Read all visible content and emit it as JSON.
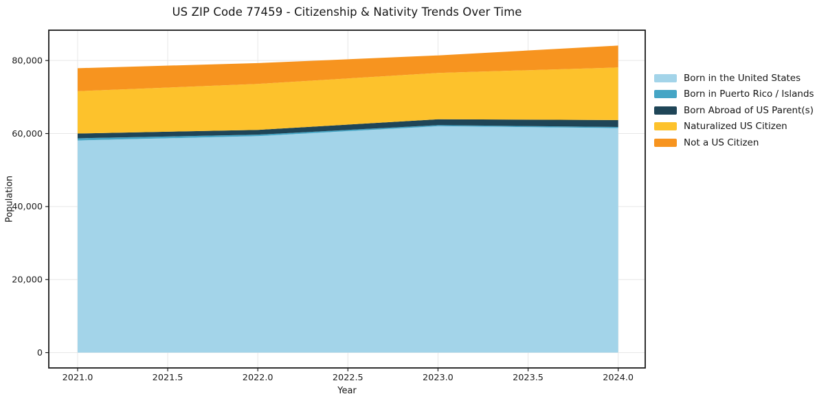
{
  "figure": {
    "background": "#ffffff"
  },
  "chart_data": {
    "type": "area",
    "stacked": true,
    "title": "US ZIP Code 77459 - Citizenship & Nativity Trends Over Time",
    "xlabel": "Year",
    "ylabel": "Population",
    "x": [
      2021,
      2022,
      2023,
      2024
    ],
    "series": [
      {
        "name": "Born in the United States",
        "color": "#a3d4e9",
        "values": [
          58100,
          59300,
          62000,
          61500
        ]
      },
      {
        "name": "Born in Puerto Rico / Islands",
        "color": "#45a5c5",
        "values": [
          600,
          400,
          300,
          300
        ]
      },
      {
        "name": "Born Abroad of US Parent(s)",
        "color": "#1f4557",
        "values": [
          1300,
          1300,
          1600,
          1900
        ]
      },
      {
        "name": "Naturalized US Citizen",
        "color": "#fdc22c",
        "values": [
          11600,
          12600,
          12700,
          14400
        ]
      },
      {
        "name": "Not a US Citizen",
        "color": "#f7941f",
        "values": [
          6300,
          5700,
          4800,
          6000
        ]
      }
    ],
    "totals": [
      77900,
      79300,
      81400,
      84100
    ],
    "xlim": [
      2020.84,
      2024.15
    ],
    "ylim": [
      -4205,
      88305
    ],
    "xticks": {
      "values": [
        2021.0,
        2021.5,
        2022.0,
        2022.5,
        2023.0,
        2023.5,
        2024.0
      ],
      "labels": [
        "2021.0",
        "2021.5",
        "2022.0",
        "2022.5",
        "2023.0",
        "2023.5",
        "2024.0"
      ]
    },
    "yticks": {
      "values": [
        0,
        20000,
        40000,
        60000,
        80000
      ],
      "labels": [
        "0",
        "20,000",
        "40,000",
        "60,000",
        "80,000"
      ]
    },
    "grid": true,
    "legend_position": "right-outside"
  },
  "style": {
    "grid_color": "#e6e6e6",
    "spine_color": "#1a1a1a",
    "tick_color": "#1a1a1a",
    "tick_label_color": "#1a1a1a",
    "text_color": "#141414"
  }
}
